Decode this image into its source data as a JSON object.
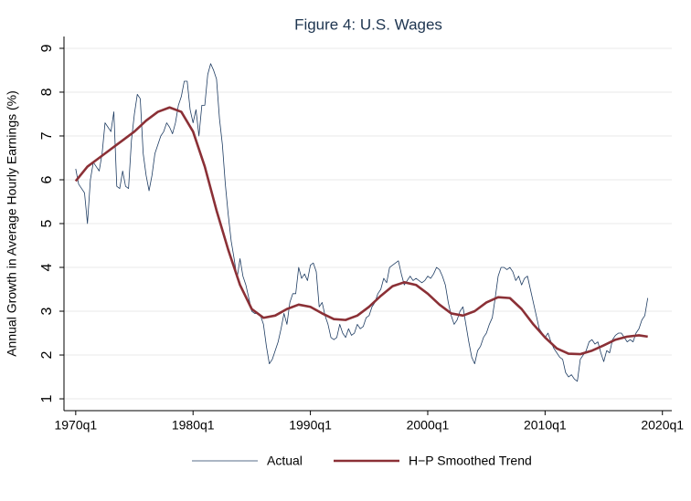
{
  "chart_data": {
    "type": "line",
    "title": "Figure 4: U.S. Wages",
    "y_label": "Annual Growth in Average Hourly Earnings (%)",
    "xlim": [
      1969,
      2020.8
    ],
    "ylim": [
      0.73,
      9.27
    ],
    "xticks": [
      {
        "value": 1970,
        "label": "1970q1"
      },
      {
        "value": 1980,
        "label": "1980q1"
      },
      {
        "value": 1990,
        "label": "1990q1"
      },
      {
        "value": 2000,
        "label": "2000q1"
      },
      {
        "value": 2010,
        "label": "2010q1"
      },
      {
        "value": 2020,
        "label": "2020q1"
      }
    ],
    "yticks": [
      1,
      2,
      3,
      4,
      5,
      6,
      7,
      8,
      9
    ],
    "grid": true,
    "legend": "bottom",
    "series": [
      {
        "name": "Actual",
        "color": "#1f3d63",
        "width": 0.8,
        "x": [
          1970,
          1970.25,
          1970.5,
          1970.75,
          1971,
          1971.25,
          1971.5,
          1971.75,
          1972,
          1972.25,
          1972.5,
          1972.75,
          1973,
          1973.25,
          1973.5,
          1973.75,
          1974,
          1974.25,
          1974.5,
          1974.75,
          1975,
          1975.25,
          1975.5,
          1975.75,
          1976,
          1976.25,
          1976.5,
          1976.75,
          1977,
          1977.25,
          1977.5,
          1977.75,
          1978,
          1978.25,
          1978.5,
          1978.75,
          1979,
          1979.25,
          1979.5,
          1979.75,
          1980,
          1980.25,
          1980.5,
          1980.75,
          1981,
          1981.25,
          1981.5,
          1981.75,
          1982,
          1982.25,
          1982.5,
          1982.75,
          1983,
          1983.25,
          1983.5,
          1983.75,
          1984,
          1984.25,
          1984.5,
          1984.75,
          1985,
          1985.25,
          1985.5,
          1985.75,
          1986,
          1986.25,
          1986.5,
          1986.75,
          1987,
          1987.25,
          1987.5,
          1987.75,
          1988,
          1988.25,
          1988.5,
          1988.75,
          1989,
          1989.25,
          1989.5,
          1989.75,
          1990,
          1990.25,
          1990.5,
          1990.75,
          1991,
          1991.25,
          1991.5,
          1991.75,
          1992,
          1992.25,
          1992.5,
          1992.75,
          1993,
          1993.25,
          1993.5,
          1993.75,
          1994,
          1994.25,
          1994.5,
          1994.75,
          1995,
          1995.25,
          1995.5,
          1995.75,
          1996,
          1996.25,
          1996.5,
          1996.75,
          1997,
          1997.25,
          1997.5,
          1997.75,
          1998,
          1998.25,
          1998.5,
          1998.75,
          1999,
          1999.25,
          1999.5,
          1999.75,
          2000,
          2000.25,
          2000.5,
          2000.75,
          2001,
          2001.25,
          2001.5,
          2001.75,
          2002,
          2002.25,
          2002.5,
          2002.75,
          2003,
          2003.25,
          2003.5,
          2003.75,
          2004,
          2004.25,
          2004.5,
          2004.75,
          2005,
          2005.25,
          2005.5,
          2005.75,
          2006,
          2006.25,
          2006.5,
          2006.75,
          2007,
          2007.25,
          2007.5,
          2007.75,
          2008,
          2008.25,
          2008.5,
          2008.75,
          2009,
          2009.25,
          2009.5,
          2009.75,
          2010,
          2010.25,
          2010.5,
          2010.75,
          2011,
          2011.25,
          2011.5,
          2011.75,
          2012,
          2012.25,
          2012.5,
          2012.75,
          2013,
          2013.25,
          2013.5,
          2013.75,
          2014,
          2014.25,
          2014.5,
          2014.75,
          2015,
          2015.25,
          2015.5,
          2015.75,
          2016,
          2016.25,
          2016.5,
          2016.75,
          2017,
          2017.25,
          2017.5,
          2017.75,
          2018,
          2018.25,
          2018.5,
          2018.75
        ],
        "values": [
          6.25,
          5.9,
          5.8,
          5.7,
          5.0,
          6.0,
          6.4,
          6.3,
          6.2,
          6.6,
          7.3,
          7.2,
          7.1,
          7.55,
          5.85,
          5.8,
          6.2,
          5.85,
          5.8,
          6.9,
          7.5,
          7.95,
          7.85,
          6.6,
          6.1,
          5.75,
          6.1,
          6.6,
          6.8,
          7.0,
          7.1,
          7.3,
          7.2,
          7.05,
          7.3,
          7.7,
          7.9,
          8.25,
          8.25,
          7.6,
          7.3,
          7.6,
          7.0,
          7.7,
          7.7,
          8.4,
          8.65,
          8.5,
          8.3,
          7.4,
          6.8,
          5.9,
          5.2,
          4.6,
          4.2,
          3.75,
          4.2,
          3.8,
          3.6,
          3.3,
          3.0,
          2.95,
          2.95,
          2.9,
          2.7,
          2.2,
          1.8,
          1.9,
          2.1,
          2.3,
          2.6,
          2.95,
          2.7,
          3.2,
          3.4,
          3.4,
          4.0,
          3.75,
          3.85,
          3.7,
          4.05,
          4.1,
          3.9,
          3.1,
          3.2,
          2.9,
          2.7,
          2.4,
          2.35,
          2.4,
          2.7,
          2.5,
          2.4,
          2.6,
          2.45,
          2.5,
          2.7,
          2.6,
          2.65,
          2.85,
          2.9,
          3.1,
          3.2,
          3.4,
          3.5,
          3.75,
          3.65,
          4.0,
          4.05,
          4.1,
          4.15,
          3.85,
          3.6,
          3.7,
          3.8,
          3.7,
          3.75,
          3.7,
          3.65,
          3.7,
          3.8,
          3.75,
          3.85,
          4.0,
          3.95,
          3.8,
          3.6,
          3.2,
          2.9,
          2.7,
          2.8,
          3.0,
          3.1,
          2.7,
          2.3,
          1.95,
          1.8,
          2.1,
          2.2,
          2.4,
          2.5,
          2.7,
          2.85,
          3.3,
          3.8,
          4.0,
          4.0,
          3.95,
          4.0,
          3.9,
          3.7,
          3.8,
          3.6,
          3.75,
          3.8,
          3.5,
          3.2,
          2.9,
          2.6,
          2.5,
          2.4,
          2.5,
          2.3,
          2.15,
          2.05,
          1.95,
          1.9,
          1.6,
          1.5,
          1.55,
          1.45,
          1.4,
          1.9,
          2.0,
          2.1,
          2.3,
          2.35,
          2.25,
          2.3,
          2.05,
          1.85,
          2.1,
          2.05,
          2.35,
          2.45,
          2.5,
          2.5,
          2.4,
          2.3,
          2.35,
          2.3,
          2.5,
          2.6,
          2.8,
          2.9,
          3.3
        ]
      },
      {
        "name": "H−P Smoothed Trend",
        "color": "#8b3036",
        "width": 2.6,
        "x": [
          1970,
          1971,
          1972,
          1973,
          1974,
          1975,
          1976,
          1977,
          1978,
          1979,
          1980,
          1981,
          1982,
          1983,
          1984,
          1985,
          1986,
          1987,
          1988,
          1989,
          1990,
          1991,
          1992,
          1993,
          1994,
          1995,
          1996,
          1997,
          1998,
          1999,
          2000,
          2001,
          2002,
          2003,
          2004,
          2005,
          2006,
          2007,
          2008,
          2009,
          2010,
          2011,
          2012,
          2013,
          2014,
          2015,
          2016,
          2017,
          2018,
          2018.75
        ],
        "values": [
          5.97,
          6.3,
          6.5,
          6.7,
          6.9,
          7.1,
          7.35,
          7.55,
          7.65,
          7.55,
          7.1,
          6.3,
          5.3,
          4.4,
          3.6,
          3.05,
          2.85,
          2.9,
          3.05,
          3.15,
          3.1,
          2.95,
          2.82,
          2.8,
          2.9,
          3.1,
          3.35,
          3.57,
          3.66,
          3.6,
          3.4,
          3.15,
          2.95,
          2.9,
          3.0,
          3.2,
          3.32,
          3.3,
          3.05,
          2.7,
          2.4,
          2.15,
          2.03,
          2.02,
          2.1,
          2.22,
          2.35,
          2.42,
          2.45,
          2.42
        ]
      }
    ]
  }
}
